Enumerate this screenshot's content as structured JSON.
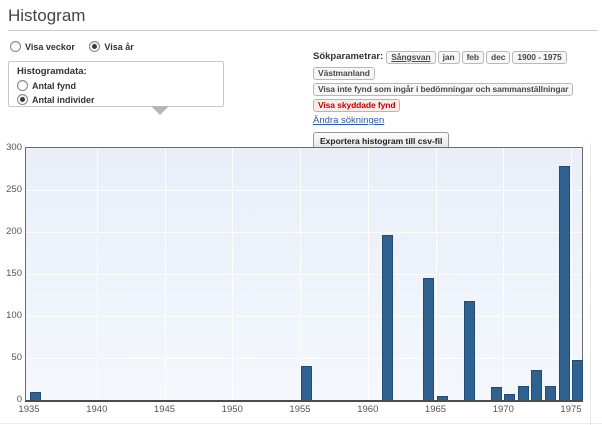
{
  "page": {
    "title": "Histogram"
  },
  "view_toggle": {
    "options": [
      {
        "label": "Visa veckor",
        "selected": false
      },
      {
        "label": "Visa år",
        "selected": true
      }
    ]
  },
  "histogram_data_box": {
    "legend": "Histogramdata:",
    "options": [
      {
        "label": "Antal fynd",
        "selected": false
      },
      {
        "label": "Antal individer",
        "selected": true
      }
    ]
  },
  "search_params": {
    "label": "Sökparametrar:",
    "taxon": "Sångsvan",
    "months": [
      "jan",
      "feb",
      "dec"
    ],
    "year_range": "1900 - 1975",
    "province": "Västmanland",
    "filter_note": "Visa inte fynd som ingår i bedömningar och sammanställningar",
    "protected": "Visa skyddade fynd",
    "edit_link": "Ändra sökningen",
    "export_button": "Exportera histogram till csv-fil"
  },
  "colors": {
    "bar_fill": "#30628f",
    "bar_border": "#1f4c78",
    "link": "#2a5aa8",
    "protected_red": "#c00000",
    "plot_bg_top": "#e9eef9",
    "plot_bg_bottom": "#f4f8fd"
  },
  "chart_data": {
    "type": "bar",
    "title": "",
    "xlabel": "",
    "ylabel": "",
    "ylim": [
      0,
      300
    ],
    "xlim": [
      1935,
      1976
    ],
    "grid": true,
    "legend": "none",
    "y_ticks": [
      0,
      50,
      100,
      150,
      200,
      250,
      300
    ],
    "x_ticks": [
      1935,
      1940,
      1945,
      1950,
      1955,
      1960,
      1965,
      1970,
      1975
    ],
    "points": [
      {
        "year": 1935,
        "value": 10
      },
      {
        "year": 1955,
        "value": 40
      },
      {
        "year": 1961,
        "value": 196
      },
      {
        "year": 1964,
        "value": 145
      },
      {
        "year": 1965,
        "value": 5
      },
      {
        "year": 1967,
        "value": 118
      },
      {
        "year": 1969,
        "value": 15
      },
      {
        "year": 1970,
        "value": 7
      },
      {
        "year": 1971,
        "value": 17
      },
      {
        "year": 1972,
        "value": 36
      },
      {
        "year": 1973,
        "value": 17
      },
      {
        "year": 1974,
        "value": 279
      },
      {
        "year": 1975,
        "value": 48
      }
    ]
  }
}
